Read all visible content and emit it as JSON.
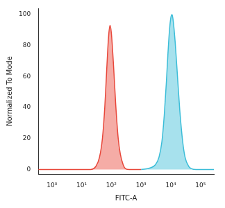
{
  "chart_data": {
    "type": "area",
    "x_label": "FITC-A",
    "y_label": "Normalized To Mode",
    "log": "x",
    "grid": false,
    "xlim": [
      0.35,
      280000
    ],
    "ylim": [
      -3,
      104
    ],
    "xticks": [
      {
        "value": 1,
        "label": "10⁰"
      },
      {
        "value": 10,
        "label": "10¹"
      },
      {
        "value": 100,
        "label": "10²"
      },
      {
        "value": 1000,
        "label": "10³"
      },
      {
        "value": 10000,
        "label": "10⁴"
      },
      {
        "value": 100000,
        "label": "10⁵"
      }
    ],
    "yticks": [
      0,
      20,
      40,
      60,
      80,
      100
    ],
    "series": [
      {
        "color": "#e8473a",
        "line_style": "solid",
        "x": [
          0.35,
          10,
          20,
          30,
          40,
          50,
          60,
          70,
          80,
          90,
          100,
          120,
          140,
          170,
          200,
          250,
          300,
          400,
          1000
        ],
        "values": [
          0,
          0,
          0,
          2,
          8,
          20,
          40,
          65,
          85,
          93,
          88,
          65,
          42,
          20,
          10,
          3,
          0.5,
          0,
          0
        ]
      },
      {
        "color": "#3bbdd8",
        "line_style": "solid",
        "x": [
          1000,
          2000,
          3000,
          4000,
          5000,
          6000,
          7000,
          8000,
          9000,
          10000,
          11000,
          12000,
          14000,
          17000,
          20000,
          25000,
          30000,
          40000,
          50000,
          70000,
          280000
        ],
        "values": [
          0,
          1,
          3,
          8,
          18,
          35,
          55,
          75,
          90,
          98,
          100,
          96,
          82,
          58,
          38,
          18,
          8,
          2,
          0.5,
          0,
          0
        ]
      }
    ]
  }
}
